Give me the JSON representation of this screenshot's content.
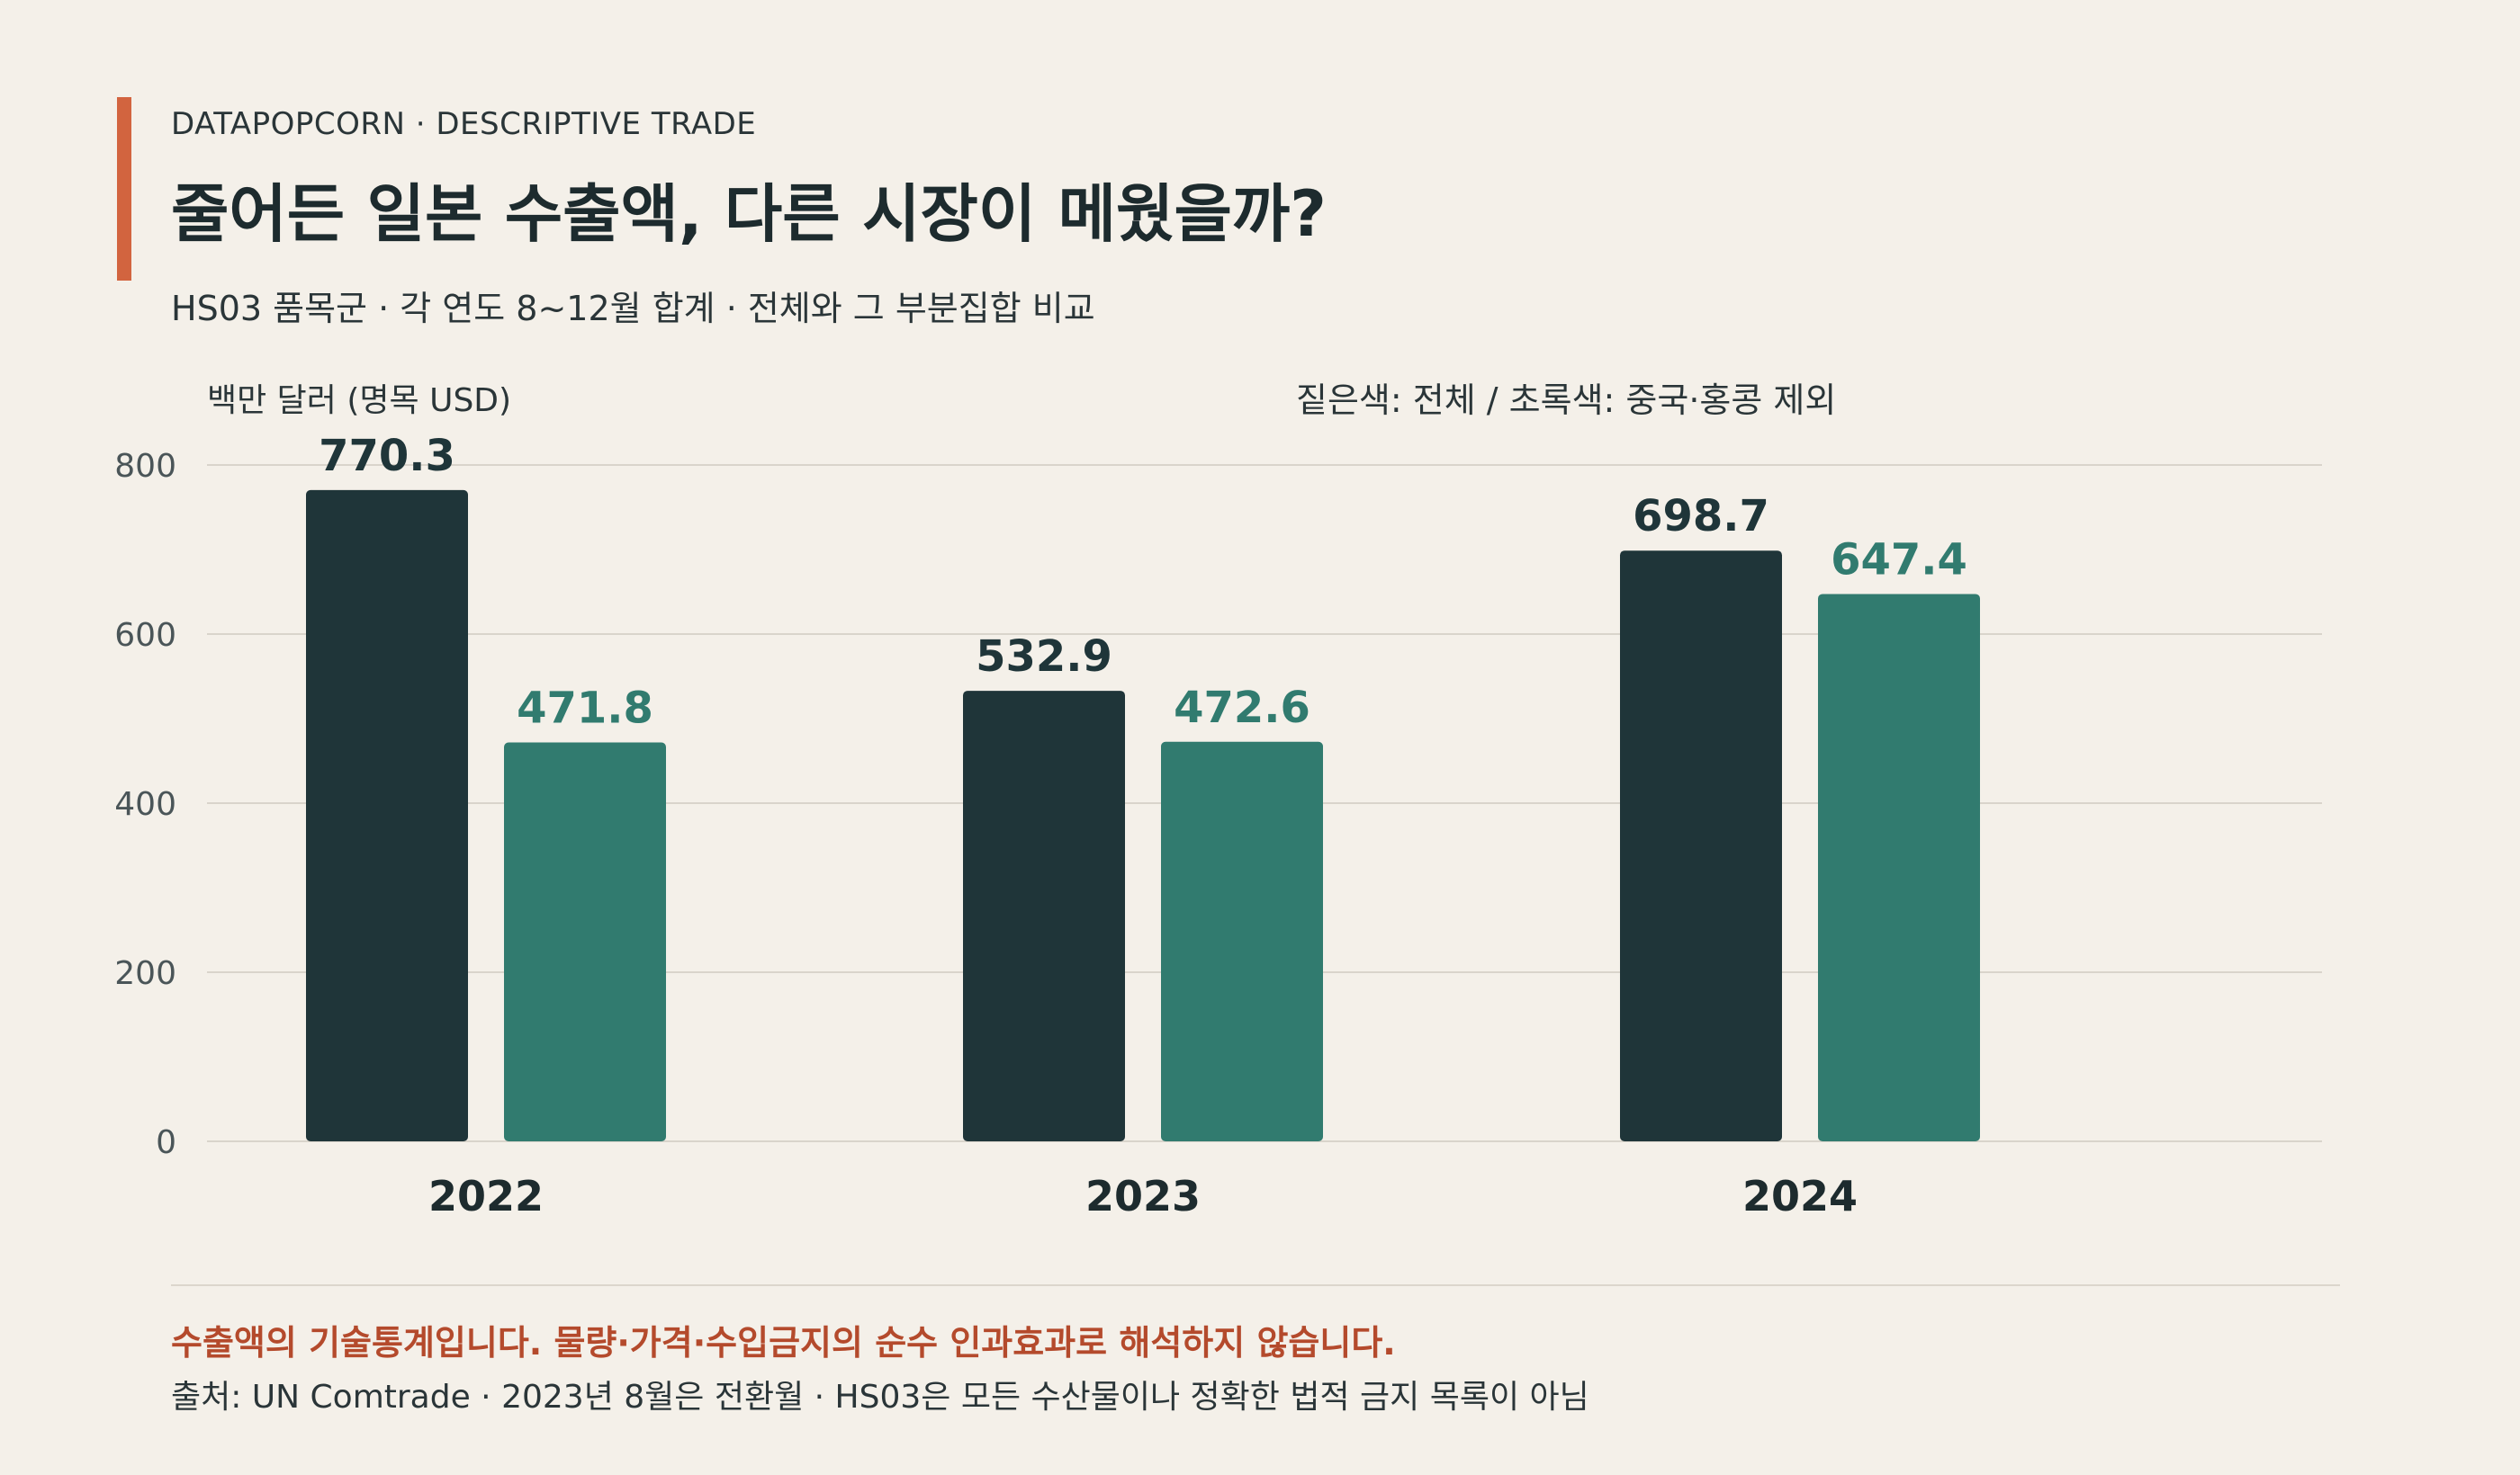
{
  "header": {
    "kicker": "DATAPOPCORN · DESCRIPTIVE TRADE",
    "title": "줄어든 일본 수출액, 다른 시장이 메웠을까?",
    "subtitle": "HS03 품목군 · 각 연도 8~12월 합계 · 전체와 그 부분집합 비교"
  },
  "colors": {
    "accent": "#d2643f",
    "total": "#1f3539",
    "subset": "#317b6f",
    "warning": "#b44a2c"
  },
  "chart_data": {
    "type": "bar",
    "ylabel": "백만 달러 (명목 USD)",
    "legend_note": "짙은색: 전체 / 초록색: 중국·홍콩 제외",
    "categories": [
      "2022",
      "2023",
      "2024"
    ],
    "series": [
      {
        "name": "전체",
        "values": [
          770.3,
          532.9,
          698.7
        ]
      },
      {
        "name": "중국·홍콩 제외",
        "values": [
          471.8,
          472.6,
          647.4
        ]
      }
    ],
    "ylim": [
      0,
      800
    ],
    "yticks": [
      0,
      200,
      400,
      600,
      800
    ],
    "grid": true
  },
  "footer": {
    "warning": "수출액의 기술통계입니다. 물량·가격·수입금지의 순수 인과효과로 해석하지 않습니다.",
    "source": "출처: UN Comtrade · 2023년 8월은 전환월 · HS03은 모든 수산물이나 정확한 법적 금지 목록이 아님"
  }
}
